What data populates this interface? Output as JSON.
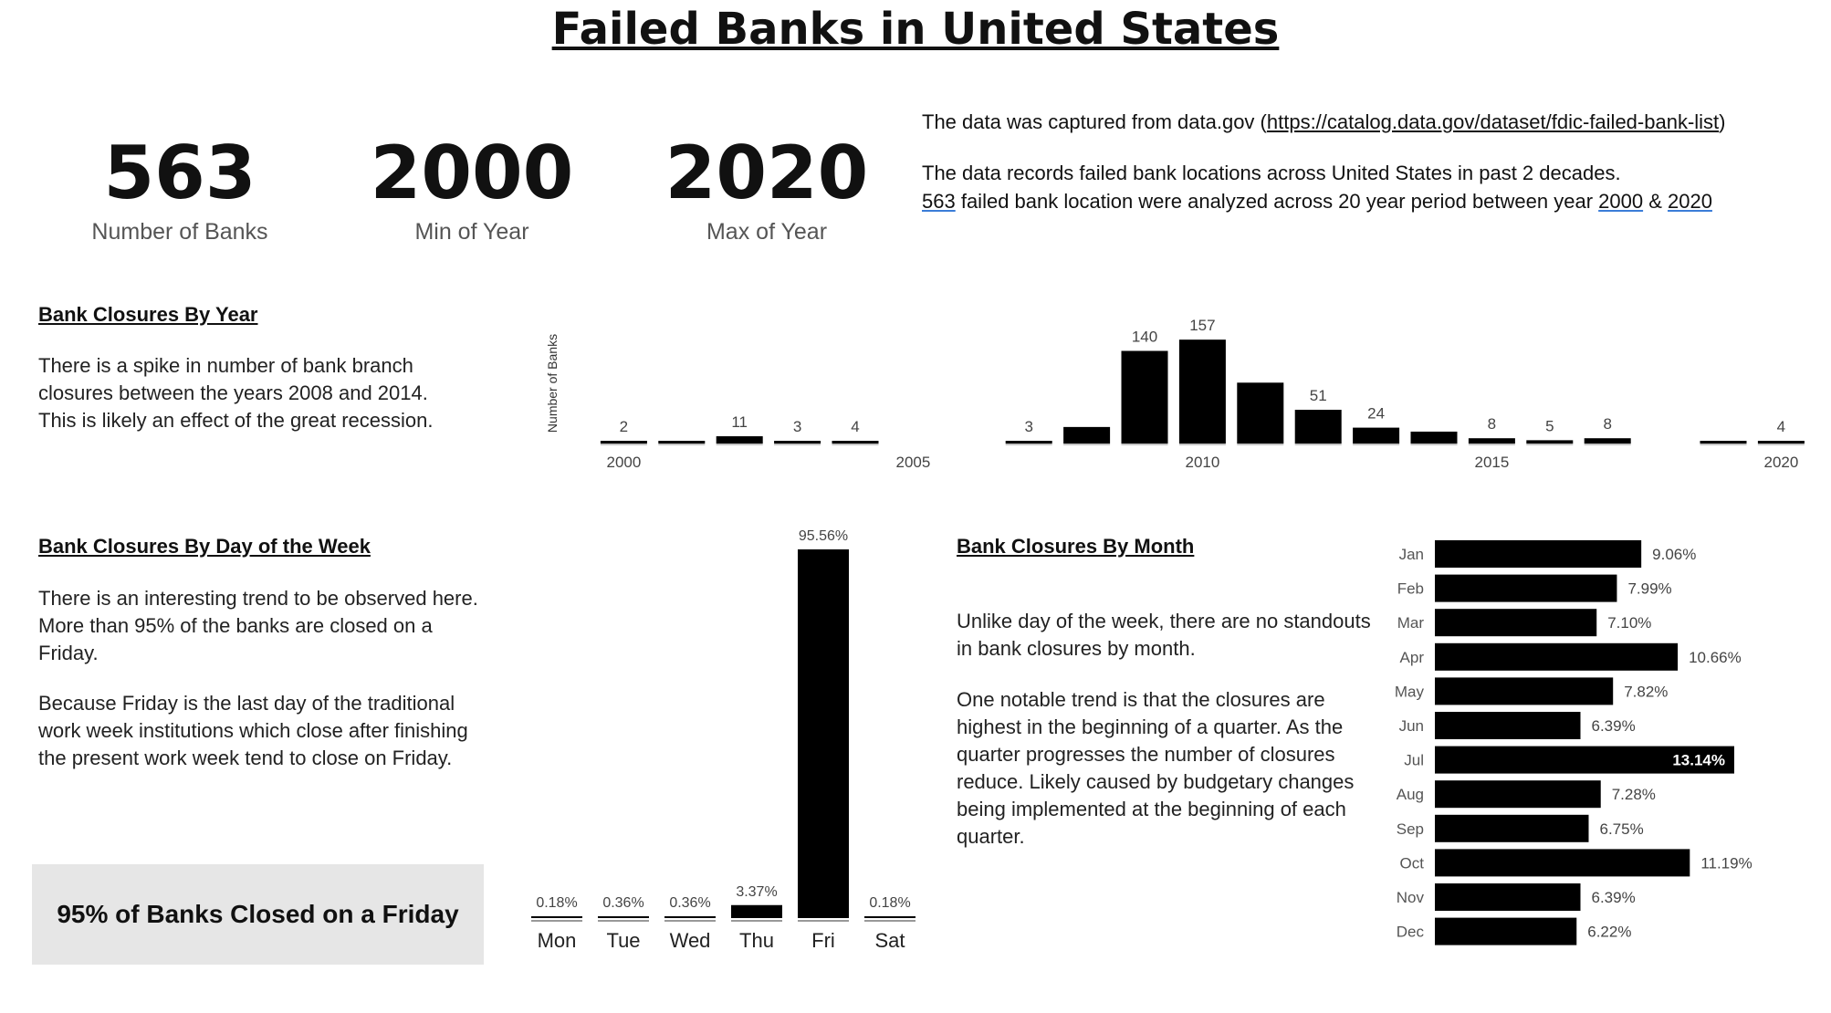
{
  "title": "Failed Banks in United States",
  "kpis": [
    {
      "value": "563",
      "label": "Number of Banks"
    },
    {
      "value": "2000",
      "label": "Min of Year"
    },
    {
      "value": "2020",
      "label": "Max of Year"
    }
  ],
  "description": {
    "source_prefix": "The data was captured from data.gov (",
    "source_link": "https://catalog.data.gov/dataset/fdic-failed-bank-list",
    "source_suffix": ")",
    "line2": "The data records failed bank locations across United States in past 2 decades.",
    "line3_count": "563",
    "line3_mid": " failed bank location were analyzed across 20 year period between year ",
    "line3_min": "2000",
    "line3_amp": " & ",
    "line3_max": "2020"
  },
  "sections": {
    "year": {
      "title": "Bank Closures By Year",
      "text": "There is a spike in number of bank branch closures between the years 2008 and 2014. This is likely an effect of the great recession."
    },
    "weekday": {
      "title": "Bank Closures By Day of the Week",
      "text1": "There is an interesting trend to be observed here. More than 95% of the banks are closed on a Friday.",
      "text2": "Because Friday is the last day of the traditional work week institutions which close after finishing the present work week tend to close on Friday.",
      "callout": "95% of Banks Closed on a Friday"
    },
    "month": {
      "title": "Bank Closures By Month",
      "text1": "Unlike day of the week, there are no standouts in bank closures by month.",
      "text2": "One notable trend is that the closures are highest in the beginning of a quarter. As the quarter progresses the number of closures reduce. Likely caused by budgetary changes being implemented at the beginning of each quarter."
    }
  },
  "chart_data": [
    {
      "type": "bar",
      "name": "by-year",
      "ylabel": "Number of Banks",
      "x": [
        2000,
        2001,
        2002,
        2003,
        2004,
        2007,
        2008,
        2009,
        2010,
        2011,
        2012,
        2013,
        2014,
        2015,
        2016,
        2017,
        2019,
        2020
      ],
      "values": [
        2,
        4,
        11,
        3,
        4,
        3,
        25,
        140,
        157,
        92,
        51,
        24,
        18,
        8,
        5,
        8,
        4,
        4
      ],
      "data_labels": {
        "2000": "2",
        "2002": "11",
        "2003": "3",
        "2004": "4",
        "2007": "3",
        "2009": "140",
        "2010": "157",
        "2012": "51",
        "2013": "24",
        "2015": "8",
        "2016": "5",
        "2017": "8",
        "2020": "4"
      },
      "xticks": [
        2000,
        2005,
        2010,
        2015,
        2020
      ],
      "ylim": [
        0,
        160
      ],
      "color": "#000000"
    },
    {
      "type": "bar",
      "name": "by-weekday",
      "categories": [
        "Mon",
        "Tue",
        "Wed",
        "Thu",
        "Fri",
        "Sat"
      ],
      "values": [
        0.18,
        0.36,
        0.36,
        3.37,
        95.56,
        0.18
      ],
      "labels": [
        "0.18%",
        "0.36%",
        "0.36%",
        "3.37%",
        "95.56%",
        "0.18%"
      ],
      "ylim": [
        0,
        100
      ],
      "color": "#000000"
    },
    {
      "type": "bar",
      "orientation": "horizontal",
      "name": "by-month",
      "categories": [
        "Jan",
        "Feb",
        "Mar",
        "Apr",
        "May",
        "Jun",
        "Jul",
        "Aug",
        "Sep",
        "Oct",
        "Nov",
        "Dec"
      ],
      "values": [
        9.06,
        7.99,
        7.1,
        10.66,
        7.82,
        6.39,
        13.14,
        7.28,
        6.75,
        11.19,
        6.39,
        6.22
      ],
      "labels": [
        "9.06%",
        "7.99%",
        "7.10%",
        "10.66%",
        "7.82%",
        "6.39%",
        "13.14%",
        "7.28%",
        "6.75%",
        "11.19%",
        "6.39%",
        "6.22%"
      ],
      "color": "#000000"
    }
  ]
}
